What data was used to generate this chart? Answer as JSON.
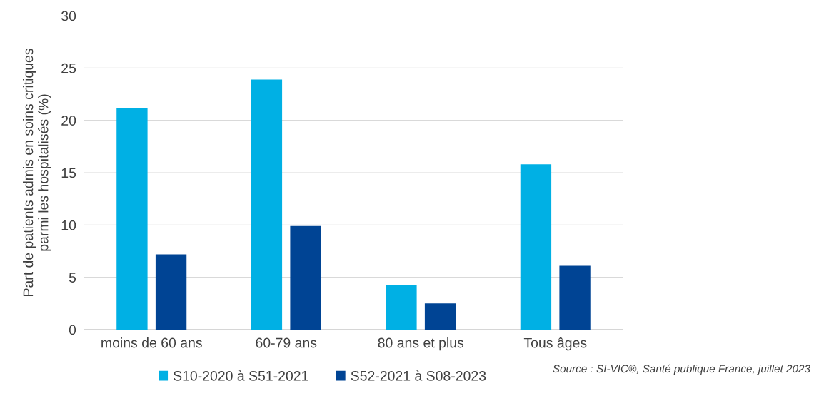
{
  "chart_data": {
    "type": "bar",
    "ylabel": "Part de patients admis en soins critiques\nparmi les hospitalisés (%)",
    "categories": [
      "moins de 60 ans",
      "60-79 ans",
      "80 ans et plus",
      "Tous âges"
    ],
    "series": [
      {
        "name": "S10-2020 à S51-2021",
        "color": "#00b0e4",
        "values": [
          21.2,
          23.9,
          4.3,
          15.8
        ]
      },
      {
        "name": "S52-2021 à S08-2023",
        "color": "#004494",
        "values": [
          7.2,
          9.9,
          2.5,
          6.1
        ]
      }
    ],
    "ylim": [
      0,
      30
    ],
    "yticks": [
      0,
      5,
      10,
      15,
      20,
      25,
      30
    ],
    "grid": "y",
    "legend": "bottom left",
    "annotations": [
      "Source : SI-VIC®, Santé publique France, juillet 2023"
    ]
  }
}
